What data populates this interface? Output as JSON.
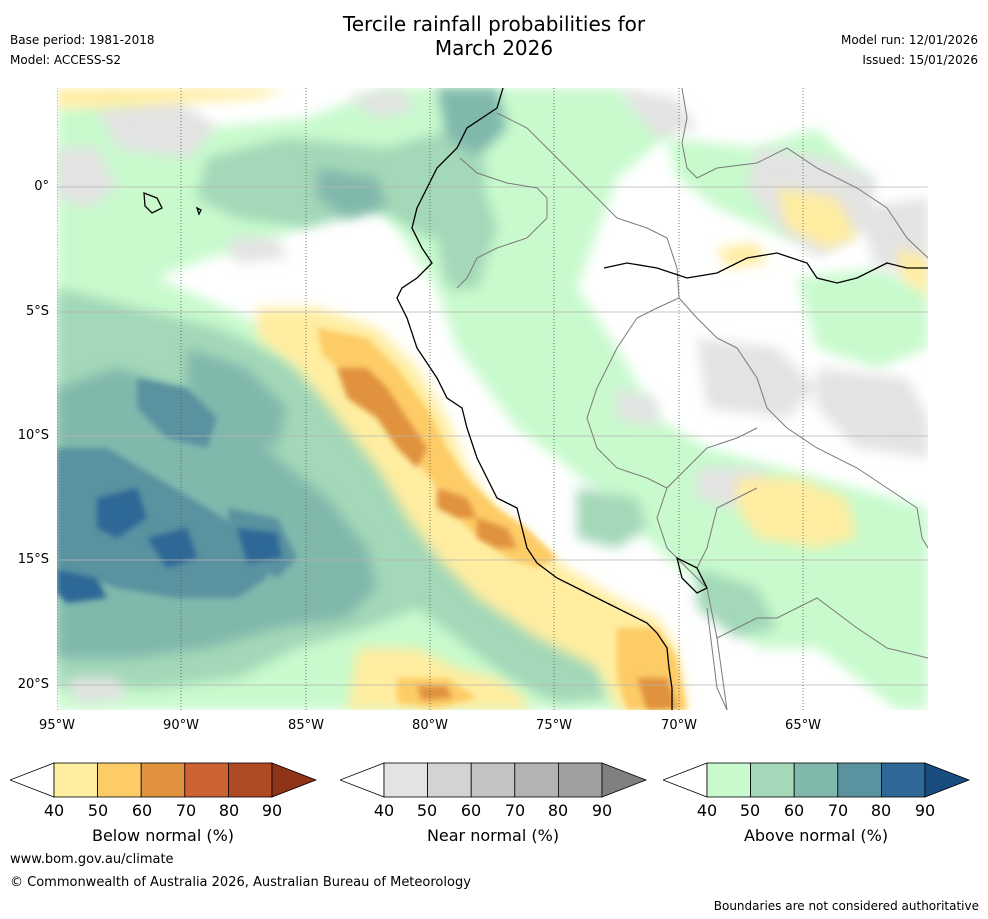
{
  "header": {
    "title_line1": "Tercile rainfall probabilities for",
    "title_line2": "March 2026",
    "base_period": "Base period: 1981-2018",
    "model": "Model: ACCESS-S2",
    "model_run": "Model run: 12/01/2026",
    "issued": "Issued: 15/01/2026"
  },
  "map": {
    "latitude_labels": [
      "0°",
      "5°S",
      "10°S",
      "15°S",
      "20°S"
    ],
    "longitude_labels": [
      "95°W",
      "90°W",
      "85°W",
      "80°W",
      "75°W",
      "70°W",
      "65°W"
    ]
  },
  "legends": [
    {
      "label": "Below normal (%)",
      "ticks": [
        "40",
        "50",
        "60",
        "70",
        "80",
        "90"
      ],
      "colors": [
        "#FFEDA0",
        "#FDCC66",
        "#E0923E",
        "#CD6233",
        "#B04A25",
        "#8F3419"
      ]
    },
    {
      "label": "Near normal (%)",
      "ticks": [
        "40",
        "50",
        "60",
        "70",
        "80",
        "90"
      ],
      "colors": [
        "#E3E3E3",
        "#D3D3D3",
        "#C3C3C3",
        "#B3B3B3",
        "#A0A0A0",
        "#808080"
      ]
    },
    {
      "label": "Above normal (%)",
      "ticks": [
        "40",
        "50",
        "60",
        "70",
        "80",
        "90"
      ],
      "colors": [
        "#C8FACD",
        "#A3D8B8",
        "#80B8AC",
        "#5A92A0",
        "#2F6897",
        "#1A4C80"
      ]
    }
  ],
  "footer": {
    "website": "www.bom.gov.au/climate",
    "copyright": "© Commonwealth of Australia 2026, Australian Bureau of Meteorology",
    "disclaimer": "Boundaries are not considered authoritative"
  }
}
